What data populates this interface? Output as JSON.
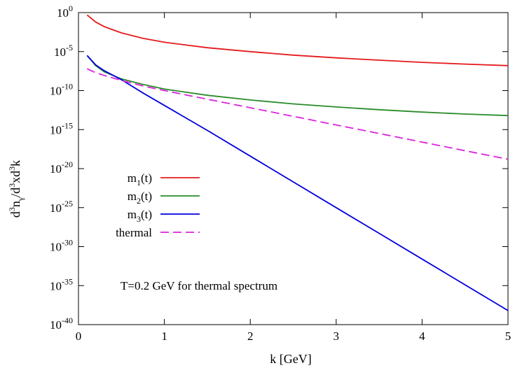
{
  "chart_data": {
    "type": "line",
    "xlabel": "k [GeV]",
    "ylabel": "d³n_γ/d³xd³k",
    "xlim": [
      0,
      5
    ],
    "ylim_log10": [
      -40,
      0
    ],
    "yscale": "log",
    "grid": false,
    "legend_position": "left-middle",
    "x_ticks": [
      "0",
      "1",
      "2",
      "3",
      "4",
      "5"
    ],
    "y_ticks": [
      {
        "base": "10",
        "exp": "0",
        "log10": 0
      },
      {
        "base": "10",
        "exp": "-5",
        "log10": -5
      },
      {
        "base": "10",
        "exp": "-10",
        "log10": -10
      },
      {
        "base": "10",
        "exp": "-15",
        "log10": -15
      },
      {
        "base": "10",
        "exp": "-20",
        "log10": -20
      },
      {
        "base": "10",
        "exp": "-25",
        "log10": -25
      },
      {
        "base": "10",
        "exp": "-30",
        "log10": -30
      },
      {
        "base": "10",
        "exp": "-35",
        "log10": -35
      },
      {
        "base": "10",
        "exp": "-40",
        "log10": -40
      }
    ],
    "series": [
      {
        "name": "m1(t)",
        "label_main": "m",
        "label_sub": "1",
        "label_tail": "(t)",
        "color": "#e41a1c",
        "dash": false,
        "x": [
          0.1,
          0.2,
          0.3,
          0.5,
          0.75,
          1.0,
          1.5,
          2.0,
          2.5,
          3.0,
          3.5,
          4.0,
          4.5,
          5.0
        ],
        "log10_y": [
          -0.3,
          -1.2,
          -1.8,
          -2.6,
          -3.3,
          -3.8,
          -4.5,
          -5.0,
          -5.45,
          -5.8,
          -6.1,
          -6.38,
          -6.6,
          -6.8
        ]
      },
      {
        "name": "m2(t)",
        "label_main": "m",
        "label_sub": "2",
        "label_tail": "(t)",
        "color": "#2a8c2a",
        "dash": false,
        "x": [
          0.1,
          0.2,
          0.3,
          0.5,
          0.75,
          1.0,
          1.5,
          2.0,
          2.5,
          3.0,
          3.5,
          4.0,
          4.5,
          5.0
        ],
        "log10_y": [
          -5.5,
          -6.8,
          -7.6,
          -8.5,
          -9.2,
          -9.8,
          -10.6,
          -11.2,
          -11.7,
          -12.1,
          -12.45,
          -12.75,
          -13.0,
          -13.2
        ]
      },
      {
        "name": "m3(t)",
        "label_main": "m",
        "label_sub": "3",
        "label_tail": "(t)",
        "color": "#0000dd",
        "dash": false,
        "x": [
          0.1,
          0.2,
          0.3,
          0.5,
          0.75,
          1.0,
          1.5,
          2.0,
          2.5,
          3.0,
          3.5,
          4.0,
          4.5,
          5.0
        ],
        "log10_y": [
          -5.5,
          -6.7,
          -7.45,
          -8.6,
          -10.3,
          -11.9,
          -15.1,
          -18.4,
          -21.7,
          -25.0,
          -28.3,
          -31.6,
          -34.9,
          -38.2
        ]
      },
      {
        "name": "thermal",
        "label_main": "thermal",
        "label_sub": "",
        "label_tail": "",
        "color": "#dd22dd",
        "dash": true,
        "x": [
          0.1,
          0.2,
          0.3,
          0.5,
          0.75,
          1.0,
          1.5,
          2.0,
          2.5,
          3.0,
          3.5,
          4.0,
          4.5,
          5.0
        ],
        "log10_y": [
          -7.2,
          -7.7,
          -8.05,
          -8.7,
          -9.4,
          -10.0,
          -11.1,
          -12.2,
          -13.3,
          -14.4,
          -15.5,
          -16.6,
          -17.7,
          -18.8
        ]
      }
    ],
    "annotation": "T=0.2 GeV for thermal spectrum"
  }
}
